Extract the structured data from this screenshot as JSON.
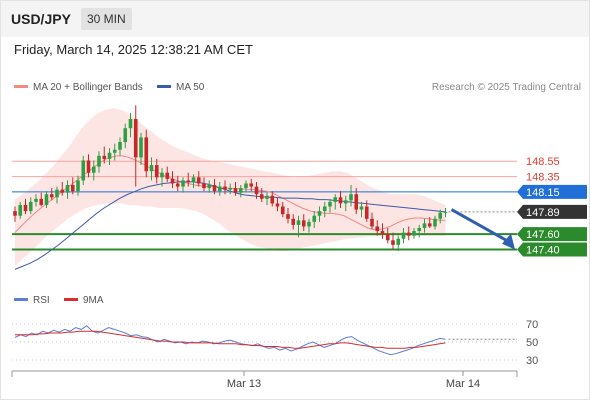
{
  "header": {
    "symbol": "USD/JPY",
    "timeframe": "30 MIN"
  },
  "datetime": "Friday, March 14, 2025 12:38:21 AM CET",
  "legend": {
    "ma20": {
      "label": "MA 20 + Bollinger Bands",
      "color": "#f28b82"
    },
    "ma50": {
      "label": "MA 50",
      "color": "#3a5ba9"
    }
  },
  "credit": "Research © 2025 Trading Central",
  "rsi_legend": {
    "rsi": {
      "label": "RSI",
      "color": "#5b7fd6"
    },
    "ma9": {
      "label": "9MA",
      "color": "#d32f2f"
    }
  },
  "chart_data": [
    {
      "type": "candlestick",
      "y_range": [
        146.95,
        149.4
      ],
      "levels": [
        {
          "value": "148.55",
          "style": "plain",
          "color": "#f3a5a0"
        },
        {
          "value": "148.35",
          "style": "plain",
          "color": "#f3a5a0"
        },
        {
          "value": "148.15",
          "style": "badge",
          "color": "#1f6fd6"
        },
        {
          "value": "147.89",
          "style": "badge",
          "color": "#333333"
        },
        {
          "value": "147.60",
          "style": "badge",
          "color": "#2b8a2b"
        },
        {
          "value": "147.40",
          "style": "badge",
          "color": "#2b8a2b"
        }
      ],
      "horizontal_lines": [
        {
          "value": 148.55,
          "color": "#f3a5a0"
        },
        {
          "value": 148.35,
          "color": "#f3a5a0"
        },
        {
          "value": 148.15,
          "color": "#1f6fd6"
        },
        {
          "value": 147.6,
          "color": "#2b8a2b"
        },
        {
          "value": 147.4,
          "color": "#2b8a2b"
        }
      ],
      "x_labels": [
        "Mar 13",
        "Mar 14"
      ],
      "candles": [
        [
          147.9,
          147.96,
          147.76,
          147.84
        ],
        [
          147.84,
          148.02,
          147.8,
          147.98
        ],
        [
          147.98,
          148.06,
          147.86,
          147.9
        ],
        [
          147.9,
          148.08,
          147.86,
          148.02
        ],
        [
          148.02,
          148.12,
          147.96,
          148.06
        ],
        [
          148.06,
          148.14,
          147.96,
          147.98
        ],
        [
          147.98,
          148.16,
          147.94,
          148.12
        ],
        [
          148.12,
          148.2,
          148.04,
          148.08
        ],
        [
          148.08,
          148.22,
          148.0,
          148.18
        ],
        [
          148.18,
          148.28,
          148.1,
          148.14
        ],
        [
          148.14,
          148.3,
          148.06,
          148.24
        ],
        [
          148.24,
          148.34,
          148.12,
          148.16
        ],
        [
          148.16,
          148.36,
          148.1,
          148.3
        ],
        [
          148.3,
          148.62,
          148.24,
          148.56
        ],
        [
          148.56,
          148.64,
          148.34,
          148.4
        ],
        [
          148.4,
          148.56,
          148.3,
          148.48
        ],
        [
          148.48,
          148.68,
          148.4,
          148.62
        ],
        [
          148.62,
          148.74,
          148.52,
          148.58
        ],
        [
          148.58,
          148.72,
          148.5,
          148.66
        ],
        [
          148.66,
          148.78,
          148.56,
          148.7
        ],
        [
          148.7,
          148.86,
          148.62,
          148.8
        ],
        [
          148.8,
          149.04,
          148.72,
          148.98
        ],
        [
          148.98,
          149.18,
          148.86,
          149.1
        ],
        [
          149.1,
          149.28,
          148.22,
          148.6
        ],
        [
          148.6,
          148.92,
          148.5,
          148.86
        ],
        [
          148.86,
          148.96,
          148.34,
          148.42
        ],
        [
          148.42,
          148.6,
          148.3,
          148.5
        ],
        [
          148.5,
          148.58,
          148.26,
          148.34
        ],
        [
          148.34,
          148.46,
          148.22,
          148.4
        ],
        [
          148.4,
          148.48,
          148.28,
          148.32
        ],
        [
          148.32,
          148.42,
          148.2,
          148.26
        ],
        [
          148.26,
          148.36,
          148.16,
          148.22
        ],
        [
          148.22,
          148.34,
          148.14,
          148.3
        ],
        [
          148.3,
          148.4,
          148.22,
          148.28
        ],
        [
          148.28,
          148.38,
          148.2,
          148.34
        ],
        [
          148.34,
          148.42,
          148.22,
          148.26
        ],
        [
          148.26,
          148.34,
          148.16,
          148.2
        ],
        [
          148.2,
          148.3,
          148.14,
          148.24
        ],
        [
          148.24,
          148.32,
          148.12,
          148.16
        ],
        [
          148.16,
          148.28,
          148.1,
          148.22
        ],
        [
          148.22,
          148.3,
          148.12,
          148.18
        ],
        [
          148.18,
          148.26,
          148.12,
          148.2
        ],
        [
          148.2,
          148.28,
          148.1,
          148.14
        ],
        [
          148.14,
          148.24,
          148.08,
          148.2
        ],
        [
          148.2,
          148.3,
          148.14,
          148.26
        ],
        [
          148.26,
          148.32,
          148.16,
          148.22
        ],
        [
          148.22,
          148.28,
          148.06,
          148.12
        ],
        [
          148.12,
          148.2,
          148.02,
          148.06
        ],
        [
          148.06,
          148.14,
          147.98,
          148.1
        ],
        [
          148.1,
          148.16,
          147.96,
          148.0
        ],
        [
          148.0,
          148.08,
          147.9,
          147.96
        ],
        [
          147.96,
          148.02,
          147.82,
          147.86
        ],
        [
          147.86,
          147.94,
          147.74,
          147.8
        ],
        [
          147.8,
          147.86,
          147.66,
          147.72
        ],
        [
          147.72,
          147.84,
          147.56,
          147.78
        ],
        [
          147.78,
          147.86,
          147.64,
          147.7
        ],
        [
          147.7,
          147.8,
          147.62,
          147.76
        ],
        [
          147.76,
          147.9,
          147.68,
          147.84
        ],
        [
          147.84,
          147.96,
          147.76,
          147.9
        ],
        [
          147.9,
          148.02,
          147.82,
          147.96
        ],
        [
          147.96,
          148.06,
          147.88,
          148.02
        ],
        [
          148.02,
          148.12,
          147.92,
          148.08
        ],
        [
          148.08,
          148.16,
          147.94,
          148.0
        ],
        [
          148.0,
          148.1,
          147.9,
          148.04
        ],
        [
          148.04,
          148.24,
          147.96,
          148.12
        ],
        [
          148.12,
          148.2,
          147.86,
          147.92
        ],
        [
          147.92,
          148.02,
          147.82,
          147.96
        ],
        [
          147.96,
          148.04,
          147.76,
          147.8
        ],
        [
          147.8,
          147.88,
          147.66,
          147.7
        ],
        [
          147.7,
          147.78,
          147.58,
          147.64
        ],
        [
          147.64,
          147.74,
          147.54,
          147.6
        ],
        [
          147.6,
          147.68,
          147.48,
          147.52
        ],
        [
          147.52,
          147.62,
          147.4,
          147.46
        ],
        [
          147.46,
          147.58,
          147.38,
          147.54
        ],
        [
          147.54,
          147.68,
          147.48,
          147.62
        ],
        [
          147.62,
          147.7,
          147.52,
          147.58
        ],
        [
          147.58,
          147.68,
          147.54,
          147.64
        ],
        [
          147.64,
          147.72,
          147.56,
          147.68
        ],
        [
          147.68,
          147.8,
          147.62,
          147.74
        ],
        [
          147.74,
          147.82,
          147.68,
          147.7
        ],
        [
          147.7,
          147.84,
          147.66,
          147.8
        ],
        [
          147.8,
          147.92,
          147.74,
          147.88
        ],
        [
          147.88,
          147.94,
          147.82,
          147.89
        ]
      ],
      "ma20": [
        147.62,
        147.7,
        147.78,
        147.85,
        147.92,
        147.98,
        148.04,
        148.1,
        148.16,
        148.22,
        148.28,
        148.34,
        148.4,
        148.46,
        148.52,
        148.57,
        148.6,
        148.62,
        148.62,
        148.6,
        148.57,
        148.53,
        148.49,
        148.44,
        148.4,
        148.36,
        148.33,
        148.3,
        148.28,
        148.26,
        148.24,
        148.23,
        148.22,
        148.22,
        148.21,
        148.2,
        148.2,
        148.19,
        148.19,
        148.18,
        148.18,
        148.17,
        148.16,
        148.14,
        148.1,
        148.06,
        148.02,
        147.98,
        147.94,
        147.91,
        147.89,
        147.88,
        147.87,
        147.87,
        147.86,
        147.84,
        147.8,
        147.76,
        147.72,
        147.68,
        147.66,
        147.66,
        147.68,
        147.71,
        147.75,
        147.78,
        147.8,
        147.81,
        147.81,
        147.8,
        147.79,
        147.78,
        147.78
      ],
      "bb_upper": [
        148.05,
        148.12,
        148.2,
        148.28,
        148.38,
        148.48,
        148.6,
        148.72,
        148.86,
        149.0,
        149.1,
        149.18,
        149.22,
        149.24,
        149.22,
        149.18,
        149.1,
        149.02,
        148.94,
        148.86,
        148.8,
        148.74,
        148.7,
        148.66,
        148.62,
        148.58,
        148.56,
        148.54,
        148.52,
        148.5,
        148.48,
        148.46,
        148.44,
        148.42,
        148.4,
        148.38,
        148.36,
        148.34,
        148.34,
        148.36,
        148.38,
        148.4,
        148.42,
        148.42,
        148.4,
        148.34,
        148.28,
        148.22,
        148.18,
        148.14,
        148.12,
        148.12,
        148.12,
        148.12,
        148.1,
        148.06,
        148.02,
        147.98
      ],
      "bb_lower": [
        147.18,
        147.28,
        147.36,
        147.46,
        147.56,
        147.64,
        147.72,
        147.8,
        147.86,
        147.92,
        147.96,
        147.98,
        148.0,
        148.0,
        148.0,
        147.98,
        147.98,
        147.96,
        147.96,
        147.94,
        147.94,
        147.94,
        147.94,
        147.92,
        147.9,
        147.86,
        147.8,
        147.74,
        147.66,
        147.6,
        147.54,
        147.48,
        147.44,
        147.42,
        147.4,
        147.38,
        147.38,
        147.4,
        147.42,
        147.44,
        147.46,
        147.48,
        147.5,
        147.52,
        147.54,
        147.55,
        147.56,
        147.57,
        147.57,
        147.57,
        147.58,
        147.58,
        147.58,
        147.58,
        147.58,
        147.58,
        147.58,
        147.58
      ],
      "ma50": [
        147.14,
        147.18,
        147.22,
        147.27,
        147.33,
        147.4,
        147.47,
        147.55,
        147.63,
        147.71,
        147.79,
        147.87,
        147.94,
        148.0,
        148.06,
        148.11,
        148.15,
        148.19,
        148.22,
        148.24,
        148.26,
        148.27,
        148.28,
        148.28,
        148.28,
        148.27,
        148.25,
        148.22,
        148.19,
        148.16,
        148.13,
        148.11,
        148.1,
        148.09,
        148.08,
        148.08,
        148.07,
        148.07,
        148.07,
        148.06,
        148.06,
        148.05,
        148.05,
        148.04,
        148.03,
        148.02,
        148.01,
        148.0,
        147.99,
        147.98,
        147.97,
        147.96,
        147.95,
        147.94,
        147.93,
        147.92,
        147.91,
        147.9,
        147.89
      ],
      "forecast": {
        "from": 147.92,
        "to": 147.45
      }
    },
    {
      "type": "line",
      "y_range": [
        20,
        80
      ],
      "ticks": [
        70,
        50,
        30
      ],
      "rsi": [
        55,
        58,
        56,
        60,
        58,
        62,
        60,
        63,
        61,
        64,
        62,
        66,
        64,
        68,
        62,
        60,
        63,
        66,
        64,
        62,
        60,
        57,
        58,
        56,
        55,
        52,
        50,
        53,
        51,
        49,
        50,
        48,
        50,
        49,
        51,
        50,
        48,
        49,
        51,
        52,
        50,
        48,
        47,
        46,
        48,
        45,
        43,
        44,
        41,
        43,
        40,
        42,
        45,
        48,
        50,
        47,
        44,
        46,
        48,
        52,
        55,
        56,
        52,
        49,
        46,
        43,
        40,
        38,
        36,
        37,
        39,
        41,
        43,
        46,
        48,
        50,
        52,
        54,
        53
      ],
      "ma9": [
        58,
        58,
        58,
        58,
        59,
        59,
        60,
        60,
        60,
        61,
        61,
        62,
        62,
        62,
        62,
        61,
        60,
        59,
        58,
        57,
        56,
        55,
        54,
        53,
        52,
        51,
        51,
        50,
        50,
        50,
        49,
        49,
        49,
        49,
        49,
        48,
        48,
        48,
        48,
        47,
        47,
        46,
        46,
        45,
        45,
        45,
        44,
        44,
        43,
        43,
        44,
        45,
        46,
        47,
        48,
        48,
        49,
        49,
        48,
        47,
        46,
        45,
        44,
        44,
        43,
        43,
        43,
        43,
        44,
        44,
        45,
        46,
        47,
        48,
        49
      ]
    }
  ]
}
